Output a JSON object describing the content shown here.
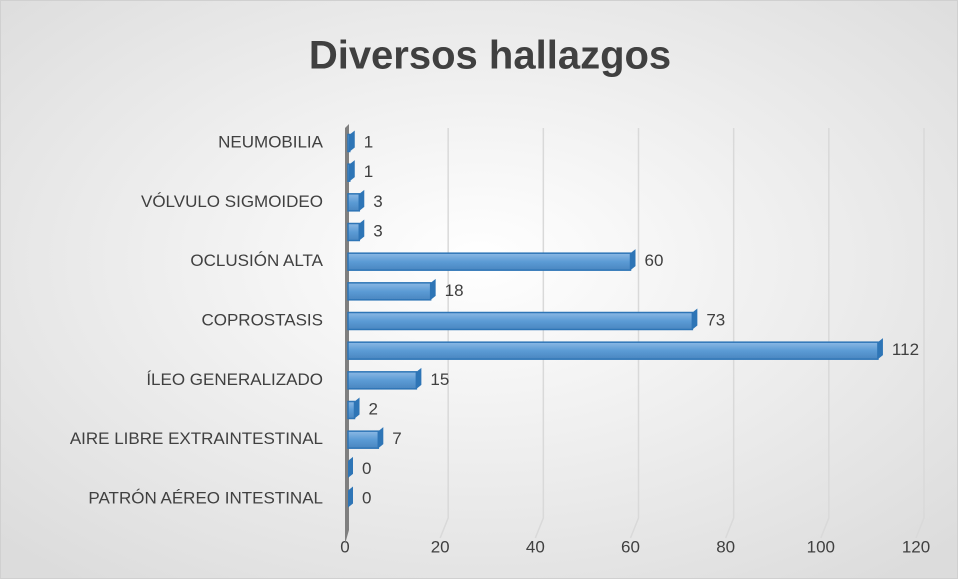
{
  "chart_data": {
    "type": "bar",
    "orientation": "horizontal",
    "title": "Diversos hallazgos",
    "categories": [
      "NEUMOBILIA",
      null,
      "VÓLVULO SIGMOIDEO",
      null,
      "OCLUSIÓN ALTA",
      null,
      "COPROSTASIS",
      null,
      "ÍLEO GENERALIZADO",
      null,
      "AIRE LIBRE EXTRAINTESTINAL",
      null,
      "PATRÓN AÉREO INTESTINAL"
    ],
    "values": [
      1,
      1,
      3,
      3,
      60,
      18,
      73,
      112,
      15,
      2,
      7,
      0,
      0
    ],
    "color": "#5b9bd5",
    "xlim": [
      0,
      120
    ],
    "xticks": [
      0,
      20,
      40,
      60,
      80,
      100,
      120
    ],
    "grid": true
  }
}
